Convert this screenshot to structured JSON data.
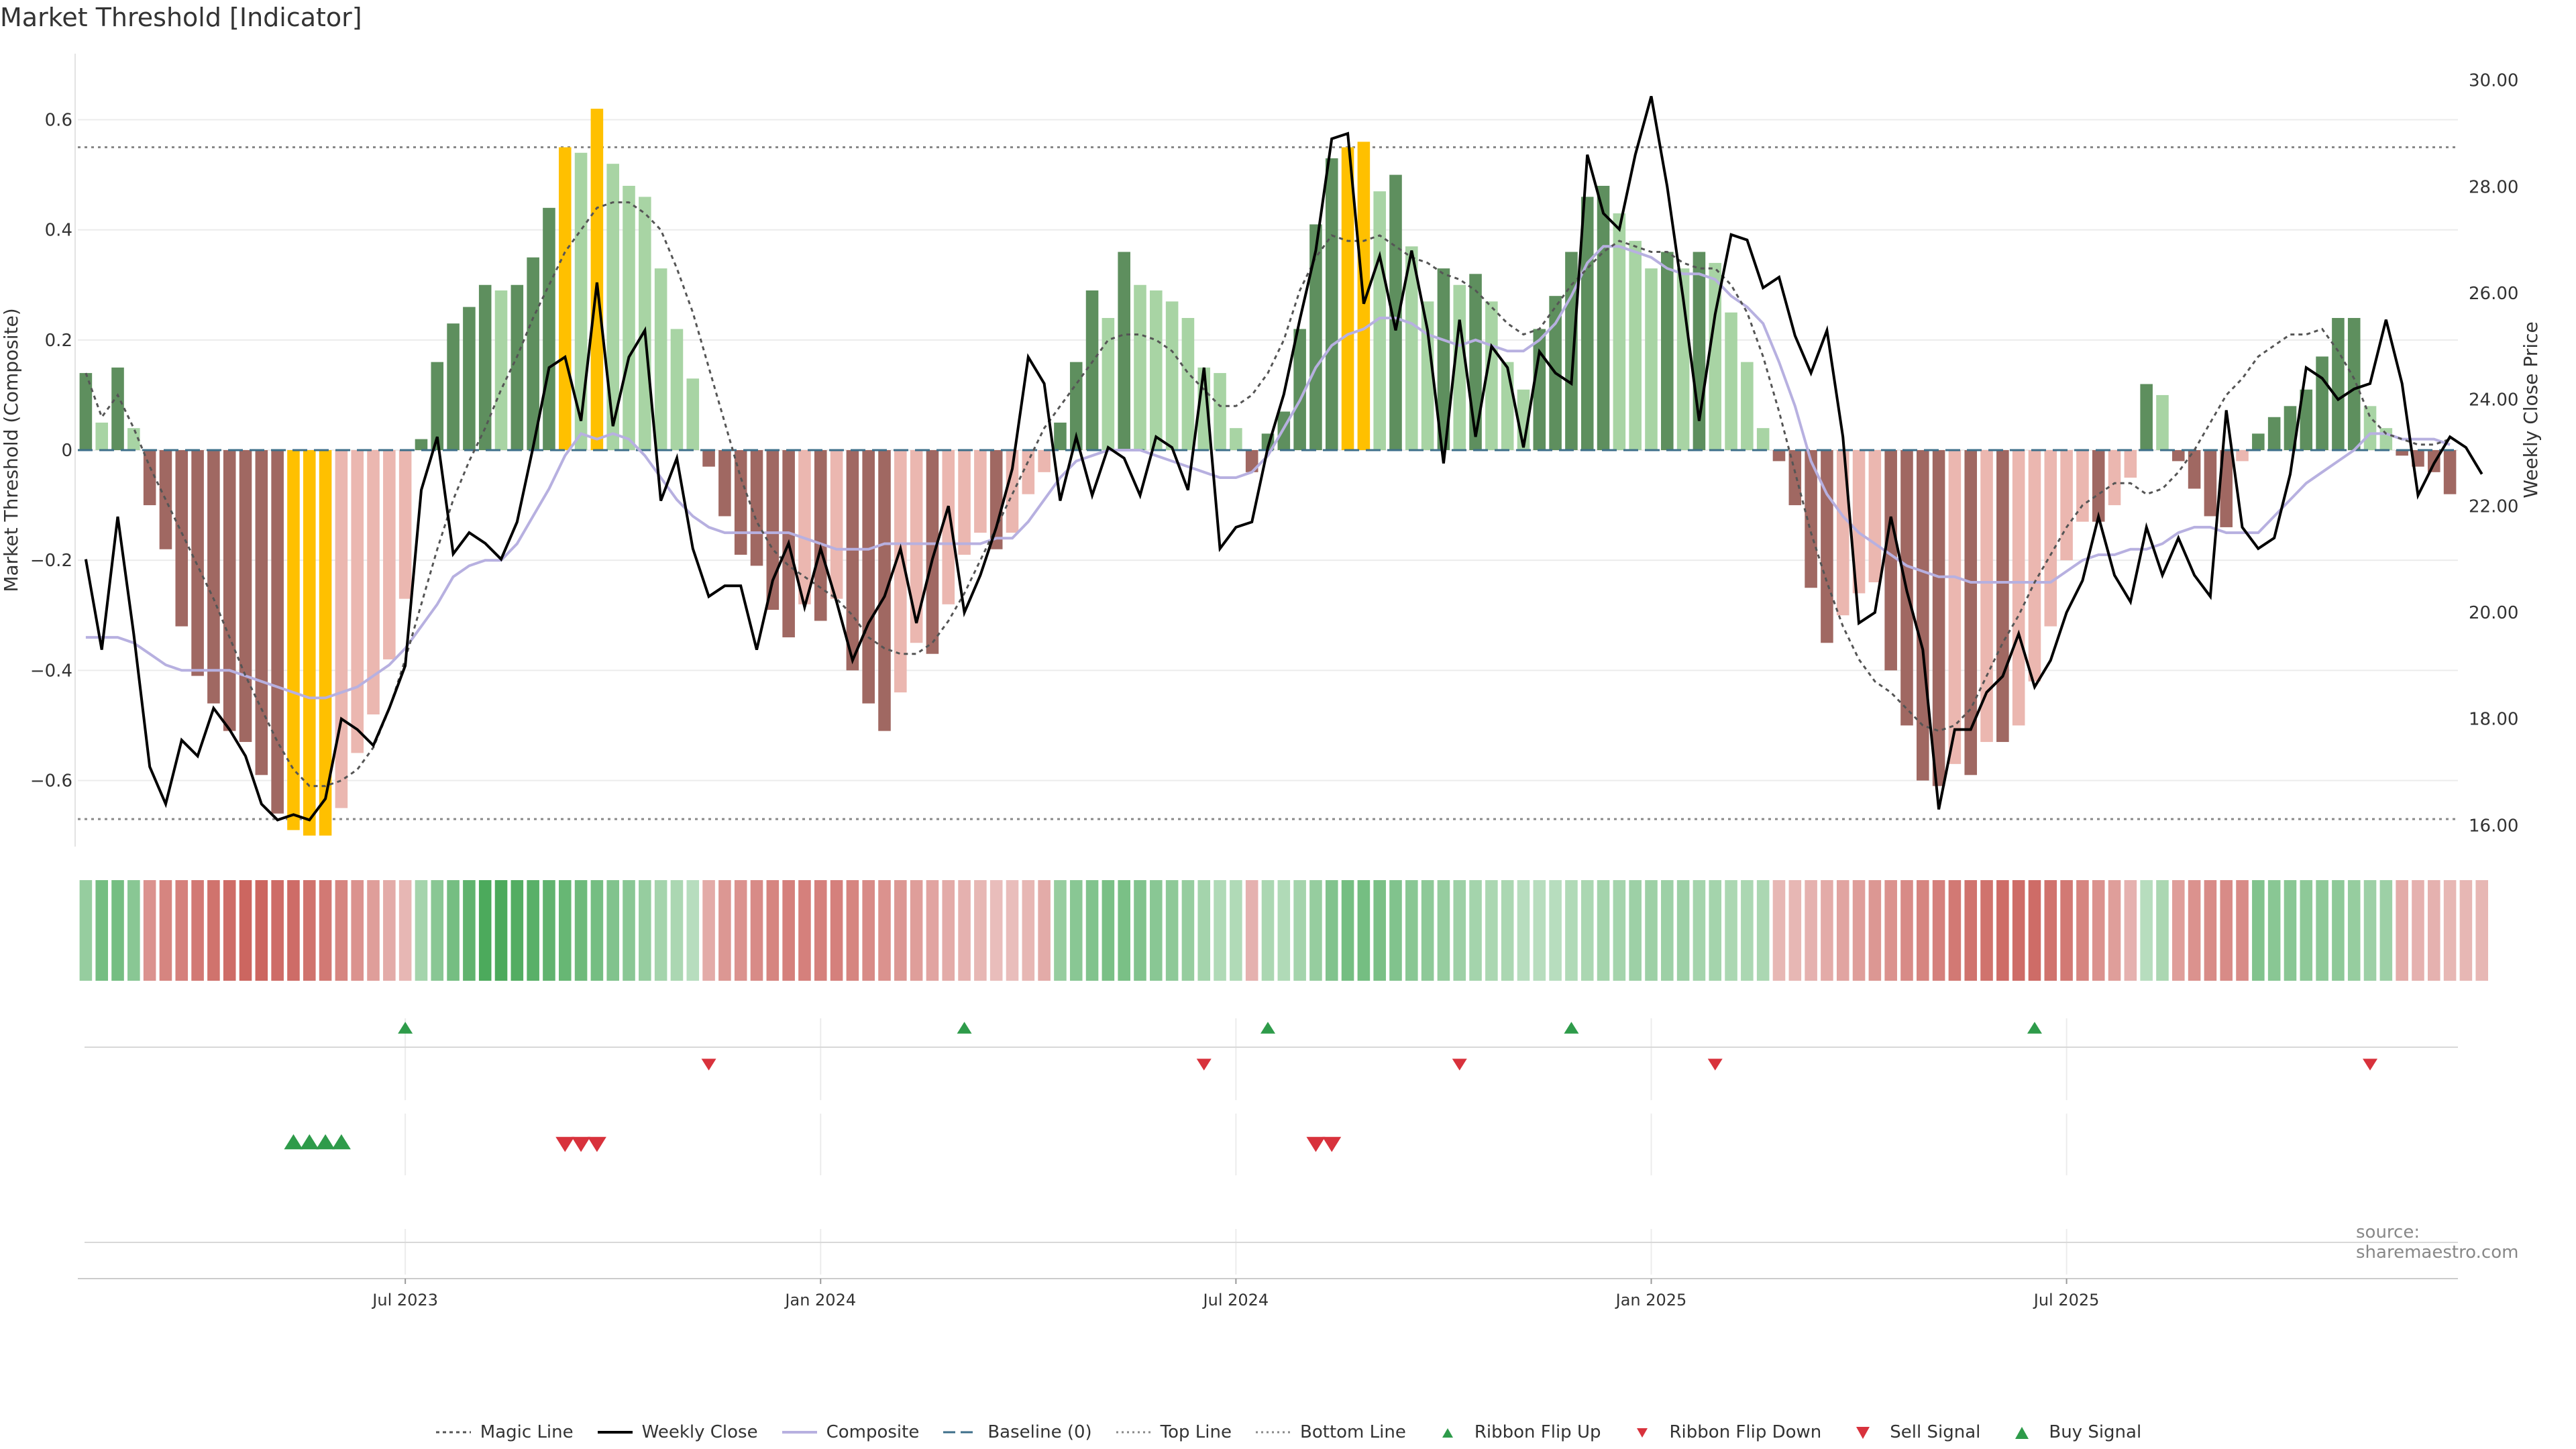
{
  "title": "Market Threshold [Indicator]",
  "source": "source: sharemaestro.com",
  "colors": {
    "bull_dark": "#5e8f5e",
    "bull_light": "#a8d4a4",
    "bear_dark": "#a06862",
    "bear_light": "#ebb7b0",
    "extreme": "#ffc000",
    "close": "#000000",
    "composite": "#b7b0e0",
    "magic": "#555555",
    "baseline": "#3d6f8a",
    "buy": "#2e9b4a",
    "sell": "#d8323c"
  },
  "chart_data": {
    "type": "bar+line",
    "title": "Market Threshold [Indicator]",
    "ylabel": "Market Threshold (Composite)",
    "y2label": "Weekly Close Price",
    "ylim": [
      -0.72,
      0.72
    ],
    "y2lim": [
      15.6,
      30.5
    ],
    "yticks": [
      "0.6",
      "0.4",
      "0.2",
      "0",
      "−0.2",
      "−0.4",
      "−0.6"
    ],
    "y2ticks": [
      "30.00",
      "28.00",
      "26.00",
      "24.00",
      "22.00",
      "20.00",
      "18.00",
      "16.00"
    ],
    "xticks": [
      "Jul 2023",
      "Jan 2024",
      "Jul 2024",
      "Jan 2025",
      "Jul 2025"
    ],
    "xtick_weeks": [
      20.5,
      46.5,
      72.5,
      98.5,
      124.5
    ],
    "top_line": 0.55,
    "bottom_line": -0.67,
    "baseline": 0,
    "bars": [
      0.14,
      0.05,
      0.15,
      0.04,
      -0.1,
      -0.18,
      -0.32,
      -0.41,
      -0.46,
      -0.51,
      -0.53,
      -0.59,
      -0.66,
      -0.69,
      -0.7,
      -0.7,
      -0.65,
      -0.55,
      -0.48,
      -0.38,
      -0.27,
      0.02,
      0.16,
      0.23,
      0.26,
      0.3,
      0.29,
      0.3,
      0.35,
      0.44,
      0.55,
      0.54,
      0.62,
      0.52,
      0.48,
      0.46,
      0.33,
      0.22,
      0.13,
      -0.03,
      -0.12,
      -0.19,
      -0.21,
      -0.29,
      -0.34,
      -0.28,
      -0.31,
      -0.27,
      -0.4,
      -0.46,
      -0.51,
      -0.44,
      -0.35,
      -0.37,
      -0.28,
      -0.19,
      -0.15,
      -0.18,
      -0.15,
      -0.08,
      -0.04,
      0.05,
      0.16,
      0.29,
      0.24,
      0.36,
      0.3,
      0.29,
      0.27,
      0.24,
      0.15,
      0.14,
      0.04,
      -0.04,
      0.03,
      0.07,
      0.22,
      0.41,
      0.53,
      0.55,
      0.56,
      0.47,
      0.5,
      0.37,
      0.27,
      0.33,
      0.3,
      0.32,
      0.27,
      0.16,
      0.11,
      0.22,
      0.28,
      0.36,
      0.46,
      0.48,
      0.43,
      0.38,
      0.33,
      0.36,
      0.33,
      0.36,
      0.34,
      0.25,
      0.16,
      0.04,
      -0.02,
      -0.1,
      -0.25,
      -0.35,
      -0.3,
      -0.26,
      -0.24,
      -0.4,
      -0.5,
      -0.6,
      -0.61,
      -0.57,
      -0.59,
      -0.53,
      -0.53,
      -0.5,
      -0.42,
      -0.32,
      -0.2,
      -0.13,
      -0.13,
      -0.1,
      -0.05,
      0.12,
      0.1,
      -0.02,
      -0.07,
      -0.12,
      -0.14,
      -0.02,
      0.03,
      0.06,
      0.08,
      0.11,
      0.17,
      0.24,
      0.24,
      0.08,
      0.04,
      -0.01,
      -0.03,
      -0.04,
      -0.08
    ],
    "composite": [
      -0.34,
      -0.34,
      -0.34,
      -0.35,
      -0.37,
      -0.39,
      -0.4,
      -0.4,
      -0.4,
      -0.4,
      -0.41,
      -0.42,
      -0.43,
      -0.44,
      -0.45,
      -0.45,
      -0.44,
      -0.43,
      -0.41,
      -0.39,
      -0.36,
      -0.32,
      -0.28,
      -0.23,
      -0.21,
      -0.2,
      -0.2,
      -0.17,
      -0.12,
      -0.07,
      -0.01,
      0.03,
      0.02,
      0.03,
      0.02,
      -0.01,
      -0.05,
      -0.09,
      -0.12,
      -0.14,
      -0.15,
      -0.15,
      -0.15,
      -0.15,
      -0.15,
      -0.16,
      -0.17,
      -0.18,
      -0.18,
      -0.18,
      -0.17,
      -0.17,
      -0.17,
      -0.17,
      -0.17,
      -0.17,
      -0.17,
      -0.16,
      -0.16,
      -0.13,
      -0.09,
      -0.05,
      -0.02,
      -0.01,
      0.0,
      0.0,
      0.0,
      -0.01,
      -0.02,
      -0.03,
      -0.04,
      -0.05,
      -0.05,
      -0.04,
      -0.01,
      0.04,
      0.09,
      0.15,
      0.19,
      0.21,
      0.22,
      0.24,
      0.24,
      0.23,
      0.21,
      0.2,
      0.19,
      0.2,
      0.19,
      0.18,
      0.18,
      0.2,
      0.23,
      0.28,
      0.34,
      0.37,
      0.37,
      0.36,
      0.35,
      0.33,
      0.32,
      0.32,
      0.31,
      0.28,
      0.26,
      0.23,
      0.16,
      0.08,
      -0.02,
      -0.08,
      -0.12,
      -0.15,
      -0.17,
      -0.19,
      -0.21,
      -0.22,
      -0.23,
      -0.23,
      -0.24,
      -0.24,
      -0.24,
      -0.24,
      -0.24,
      -0.24,
      -0.22,
      -0.2,
      -0.19,
      -0.19,
      -0.18,
      -0.18,
      -0.17,
      -0.15,
      -0.14,
      -0.14,
      -0.15,
      -0.15,
      -0.15,
      -0.12,
      -0.09,
      -0.06,
      -0.04,
      -0.02,
      0.0,
      0.03,
      0.03,
      0.02,
      0.02,
      0.02,
      0.01
    ],
    "magic": [
      0.14,
      0.06,
      0.1,
      0.04,
      -0.03,
      -0.09,
      -0.15,
      -0.21,
      -0.27,
      -0.34,
      -0.41,
      -0.47,
      -0.53,
      -0.58,
      -0.61,
      -0.61,
      -0.6,
      -0.58,
      -0.54,
      -0.47,
      -0.38,
      -0.28,
      -0.18,
      -0.09,
      -0.02,
      0.04,
      0.11,
      0.17,
      0.24,
      0.3,
      0.36,
      0.4,
      0.44,
      0.45,
      0.45,
      0.43,
      0.4,
      0.33,
      0.25,
      0.15,
      0.05,
      -0.05,
      -0.13,
      -0.18,
      -0.21,
      -0.23,
      -0.25,
      -0.27,
      -0.3,
      -0.34,
      -0.36,
      -0.37,
      -0.37,
      -0.35,
      -0.31,
      -0.26,
      -0.2,
      -0.14,
      -0.08,
      -0.02,
      0.04,
      0.08,
      0.12,
      0.16,
      0.2,
      0.21,
      0.21,
      0.2,
      0.18,
      0.14,
      0.11,
      0.08,
      0.08,
      0.1,
      0.14,
      0.2,
      0.29,
      0.35,
      0.39,
      0.38,
      0.38,
      0.39,
      0.37,
      0.35,
      0.34,
      0.32,
      0.31,
      0.29,
      0.26,
      0.23,
      0.21,
      0.22,
      0.26,
      0.3,
      0.33,
      0.36,
      0.38,
      0.37,
      0.36,
      0.36,
      0.34,
      0.33,
      0.33,
      0.3,
      0.25,
      0.17,
      0.07,
      -0.04,
      -0.15,
      -0.24,
      -0.32,
      -0.38,
      -0.42,
      -0.44,
      -0.47,
      -0.5,
      -0.51,
      -0.5,
      -0.47,
      -0.41,
      -0.35,
      -0.3,
      -0.24,
      -0.19,
      -0.14,
      -0.1,
      -0.08,
      -0.06,
      -0.06,
      -0.08,
      -0.07,
      -0.04,
      0.0,
      0.05,
      0.1,
      0.13,
      0.17,
      0.19,
      0.21,
      0.21,
      0.22,
      0.18,
      0.13,
      0.06,
      0.03,
      0.02,
      0.01,
      0.01,
      0.02
    ],
    "close": [
      21.0,
      19.3,
      21.8,
      19.6,
      17.1,
      16.4,
      17.6,
      17.3,
      18.2,
      17.8,
      17.3,
      16.4,
      16.1,
      16.2,
      16.1,
      16.5,
      18.0,
      17.8,
      17.5,
      18.2,
      19.0,
      22.3,
      23.3,
      21.1,
      21.5,
      21.3,
      21.0,
      21.7,
      23.1,
      24.6,
      24.8,
      23.6,
      26.2,
      23.5,
      24.8,
      25.3,
      22.1,
      22.9,
      21.2,
      20.3,
      20.5,
      20.5,
      19.3,
      20.6,
      21.3,
      20.1,
      21.2,
      20.2,
      19.1,
      19.8,
      20.3,
      21.2,
      19.8,
      21.0,
      22.0,
      20.0,
      20.7,
      21.6,
      22.7,
      24.8,
      24.3,
      22.1,
      23.3,
      22.2,
      23.1,
      22.9,
      22.2,
      23.3,
      23.1,
      22.3,
      24.6,
      21.2,
      21.6,
      21.7,
      23.1,
      24.1,
      25.5,
      26.8,
      28.9,
      29.0,
      25.8,
      26.7,
      25.3,
      26.8,
      25.3,
      22.8,
      25.5,
      23.3,
      25.0,
      24.6,
      23.1,
      24.9,
      24.5,
      24.3,
      28.6,
      27.5,
      27.2,
      28.6,
      29.7,
      28.0,
      25.9,
      23.6,
      25.6,
      27.1,
      27.0,
      26.1,
      26.3,
      25.2,
      24.5,
      25.3,
      23.3,
      19.8,
      20.0,
      21.8,
      20.4,
      19.3,
      16.3,
      17.8,
      17.8,
      18.5,
      18.8,
      19.6,
      18.6,
      19.1,
      20.0,
      20.6,
      21.8,
      20.7,
      20.2,
      21.6,
      20.7,
      21.4,
      20.7,
      20.3,
      23.8,
      21.6,
      21.2,
      21.4,
      22.6,
      24.6,
      24.4,
      24.0,
      24.2,
      24.3,
      25.5,
      24.3,
      22.2,
      22.8,
      23.3,
      23.1,
      22.6
    ],
    "ribbon_levels": [
      0.45,
      0.7,
      0.7,
      0.55,
      0.55,
      0.65,
      0.7,
      0.75,
      0.8,
      0.85,
      0.9,
      0.9,
      0.85,
      0.85,
      0.8,
      0.75,
      0.65,
      0.55,
      0.45,
      0.35,
      0.25,
      0.35,
      0.55,
      0.7,
      0.85,
      1.0,
      1.0,
      0.95,
      0.9,
      0.85,
      0.8,
      0.75,
      0.7,
      0.6,
      0.55,
      0.45,
      0.35,
      0.3,
      0.2,
      0.35,
      0.5,
      0.55,
      0.6,
      0.65,
      0.7,
      0.7,
      0.7,
      0.7,
      0.65,
      0.6,
      0.55,
      0.5,
      0.45,
      0.4,
      0.35,
      0.3,
      0.25,
      0.2,
      0.2,
      0.25,
      0.35,
      0.45,
      0.55,
      0.6,
      0.65,
      0.65,
      0.6,
      0.55,
      0.5,
      0.45,
      0.35,
      0.25,
      0.25,
      0.3,
      0.3,
      0.25,
      0.35,
      0.45,
      0.6,
      0.7,
      0.7,
      0.65,
      0.6,
      0.55,
      0.5,
      0.45,
      0.4,
      0.35,
      0.3,
      0.3,
      0.2,
      0.2,
      0.2,
      0.25,
      0.3,
      0.35,
      0.35,
      0.4,
      0.4,
      0.4,
      0.4,
      0.35,
      0.35,
      0.3,
      0.3,
      0.3,
      0.25,
      0.25,
      0.3,
      0.35,
      0.4,
      0.45,
      0.5,
      0.55,
      0.6,
      0.65,
      0.7,
      0.75,
      0.8,
      0.8,
      0.85,
      0.85,
      0.85,
      0.8,
      0.75,
      0.65,
      0.55,
      0.45,
      0.3,
      0.2,
      0.3,
      0.45,
      0.55,
      0.6,
      0.6,
      0.6,
      0.6,
      0.55,
      0.55,
      0.5,
      0.5,
      0.5,
      0.45,
      0.4,
      0.4,
      0.35,
      0.3,
      0.3,
      0.25,
      0.25,
      0.25
    ],
    "ribbon_flip_up_weeks": [
      20,
      55,
      74,
      93,
      122
    ],
    "ribbon_flip_down_weeks": [
      39,
      70,
      86,
      102,
      143
    ],
    "buy_signal_weeks": [
      13,
      14,
      15,
      16
    ],
    "sell_signal_weeks": [
      30,
      31,
      32,
      77,
      78
    ],
    "legend": [
      "Magic Line",
      "Weekly Close",
      "Composite",
      "Baseline (0)",
      "Top Line",
      "Bottom Line",
      "Ribbon Flip Up",
      "Ribbon Flip Down",
      "Sell Signal",
      "Buy Signal"
    ]
  }
}
